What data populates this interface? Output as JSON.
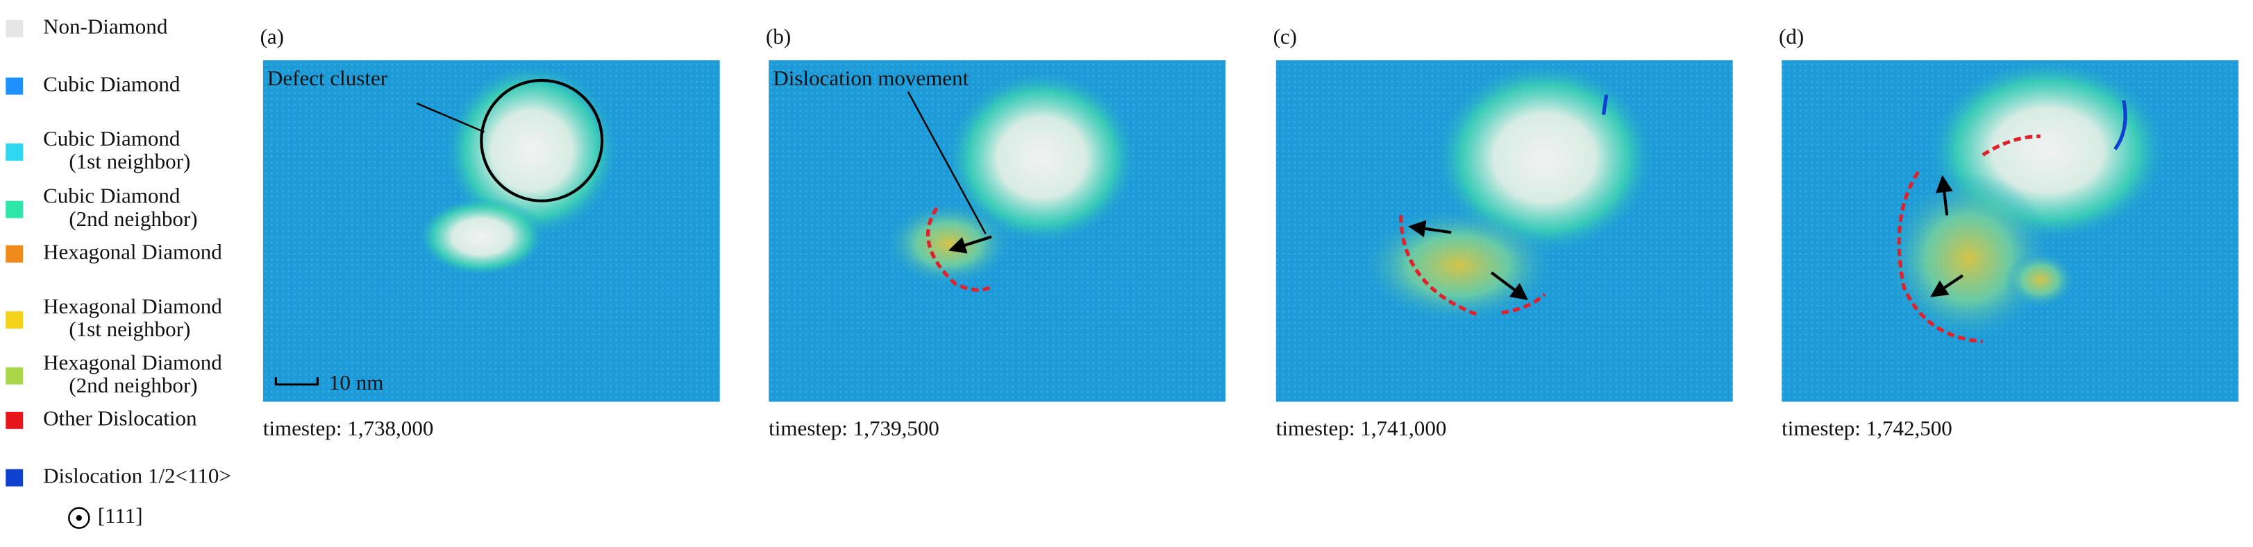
{
  "legend": [
    {
      "lines": [
        "Non-Diamond"
      ],
      "color": "#e6e6e6"
    },
    {
      "lines": [
        "Cubic Diamond"
      ],
      "color": "#1e90ff"
    },
    {
      "lines": [
        "Cubic Diamond",
        "(1st neighbor)"
      ],
      "color": "#2fd8f0"
    },
    {
      "lines": [
        "Cubic Diamond",
        "(2nd neighbor)"
      ],
      "color": "#2ee6a8"
    },
    {
      "lines": [
        "Hexagonal Diamond"
      ],
      "color": "#f08a1c"
    },
    {
      "lines": [
        "Hexagonal Diamond",
        "(1st neighbor)"
      ],
      "color": "#f5d21a"
    },
    {
      "lines": [
        "Hexagonal Diamond",
        "(2nd neighbor)"
      ],
      "color": "#a8d84a"
    },
    {
      "lines": [
        "Other Dislocation"
      ],
      "color": "#e8141c"
    },
    {
      "lines": [
        "Dislocation 1/2<110>"
      ],
      "color": "#1040d0"
    }
  ],
  "direction": "[111]",
  "panels": [
    {
      "label": "(a)",
      "timestep": "timestep: 1,738,000",
      "annotation": "Defect cluster",
      "scale_bar": "10 nm"
    },
    {
      "label": "(b)",
      "timestep": "timestep: 1,739,500",
      "annotation": "Dislocation movement"
    },
    {
      "label": "(c)",
      "timestep": "timestep: 1,741,000"
    },
    {
      "label": "(d)",
      "timestep": "timestep: 1,742,500"
    }
  ]
}
